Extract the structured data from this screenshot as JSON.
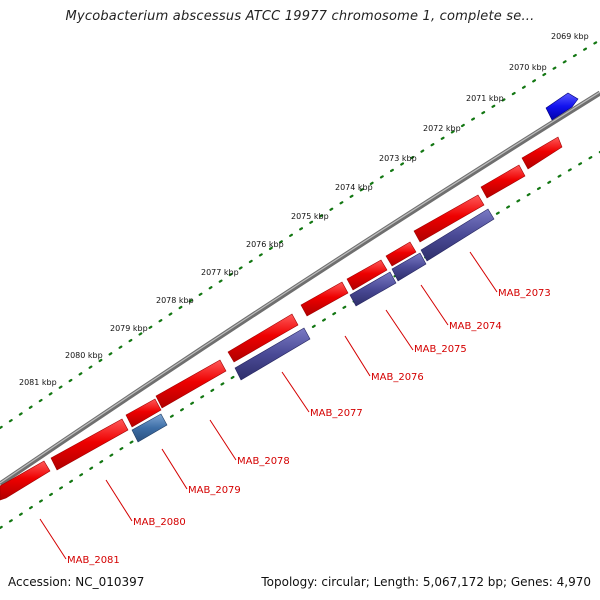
{
  "title": "Mycobacterium abscessus ATCC 19977 chromosome 1, complete se...",
  "accession": "Accession: NC_010397",
  "summary": "Topology: circular; Length: 5,067,172 bp; Genes: 4,970",
  "colors": {
    "forward_gene": "#ee0000",
    "reverse_cds": "#4a4a96",
    "highlight_cds": "#3d6ea6",
    "blue_gene": "#1111ee",
    "backbone": "#777777",
    "ticks": "#137713",
    "labels": "#d40000"
  },
  "kbp_ticks": [
    "2069 kbp",
    "2070 kbp",
    "2071 kbp",
    "2072 kbp",
    "2073 kbp",
    "2074 kbp",
    "2075 kbp",
    "2076 kbp",
    "2077 kbp",
    "2078 kbp",
    "2079 kbp",
    "2080 kbp",
    "2081 kbp"
  ],
  "genes": [
    "MAB_2073",
    "MAB_2074",
    "MAB_2075",
    "MAB_2076",
    "MAB_2077",
    "MAB_2078",
    "MAB_2079",
    "MAB_2080",
    "MAB_2081"
  ]
}
